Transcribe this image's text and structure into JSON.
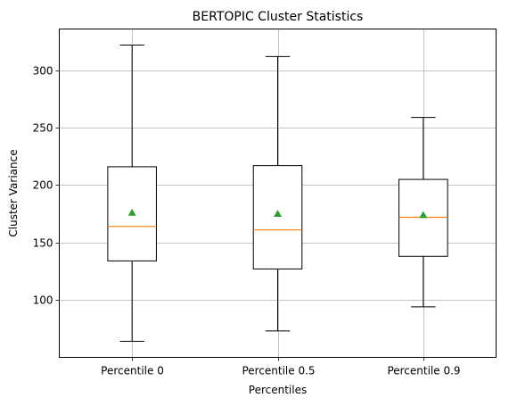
{
  "chart_data": {
    "type": "box",
    "title": "BERTOPIC Cluster Statistics",
    "xlabel": "Percentiles",
    "ylabel": "Cluster Variance",
    "ylim": [
      50,
      336
    ],
    "yticks": [
      100,
      150,
      200,
      250,
      300
    ],
    "grid": true,
    "categories": [
      "Percentile 0",
      "Percentile 0.5",
      "Percentile 0.9"
    ],
    "boxes": [
      {
        "whisker_low": 64,
        "q1": 134,
        "median": 164,
        "q3": 216,
        "whisker_high": 322,
        "mean": 176
      },
      {
        "whisker_low": 73,
        "q1": 127,
        "median": 161,
        "q3": 217,
        "whisker_high": 312,
        "mean": 175
      },
      {
        "whisker_low": 94,
        "q1": 138,
        "median": 172,
        "q3": 205,
        "whisker_high": 259,
        "mean": 174
      }
    ],
    "colors": {
      "box": "#000000",
      "median": "#ff7f0e",
      "mean": "#2ca02c",
      "grid": "#b0b0b0"
    }
  }
}
